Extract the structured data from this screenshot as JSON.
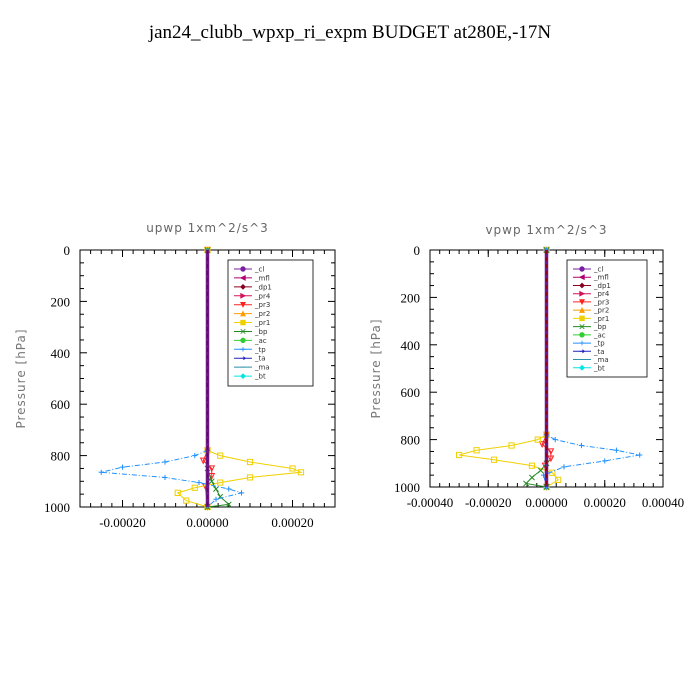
{
  "title": "jan24_clubb_wpxp_ri_expm  BUDGET at280E,-17N",
  "legend_entries": [
    "_cl",
    "_mfl",
    "_dp1",
    "_pr4",
    "_pr3",
    "_pr2",
    "_pr1",
    "_bp",
    "_ac",
    "_tp",
    "_ta",
    "_ma",
    "_bt"
  ],
  "colors": {
    "_cl": "#7a1fa2",
    "_mfl": "#b0006e",
    "_dp1": "#8b0020",
    "_pr4": "#d4145a",
    "_pr3": "#ff2020",
    "_pr2": "#ff9c00",
    "_pr1": "#f0d000",
    "_bp": "#228b22",
    "_ac": "#32cd32",
    "_tp": "#1e90ff",
    "_ta": "#2020c0",
    "_ma": "#2f8fa8",
    "_bt": "#00e5e5"
  },
  "chart_data": [
    {
      "type": "line",
      "title": "upwp   1xm^2/s^3",
      "ylabel": "Pressure [hPa]",
      "xlim": [
        -0.0003,
        0.0003
      ],
      "ylim": [
        1000,
        0
      ],
      "yticks": [
        0,
        200,
        400,
        600,
        800,
        1000
      ],
      "ytick_labels": [
        "0",
        "200",
        "400",
        "600",
        "800",
        "1000"
      ],
      "xticks": [
        -0.0002,
        0.0,
        0.0002
      ],
      "xtick_labels": [
        "-0.00020",
        "0.00000",
        "0.00020"
      ],
      "grid": false,
      "legend_position": "top-right",
      "series": [
        {
          "name": "_cl",
          "x": [
            0,
            0,
            0,
            0
          ],
          "y": [
            0,
            400,
            800,
            1000
          ]
        },
        {
          "name": "_mfl",
          "x": [
            0,
            0,
            0,
            0
          ],
          "y": [
            0,
            400,
            800,
            1000
          ]
        },
        {
          "name": "_dp1",
          "x": [
            0,
            0,
            0,
            0
          ],
          "y": [
            0,
            400,
            800,
            1000
          ]
        },
        {
          "name": "_pr4",
          "x": [
            0,
            0,
            0,
            0
          ],
          "y": [
            0,
            400,
            800,
            1000
          ]
        },
        {
          "name": "_pr3",
          "x": [
            0,
            0,
            -1e-05,
            1e-05,
            1e-05,
            -5e-06,
            0
          ],
          "y": [
            0,
            780,
            820,
            850,
            880,
            920,
            1000
          ]
        },
        {
          "name": "_pr2",
          "x": [
            0,
            0,
            0,
            0
          ],
          "y": [
            0,
            400,
            800,
            1000
          ]
        },
        {
          "name": "_pr1",
          "x": [
            0,
            0,
            3e-05,
            0.0001,
            0.0002,
            0.00022,
            0.0001,
            3e-05,
            -3e-05,
            -7e-05,
            -5e-05,
            0
          ],
          "y": [
            0,
            780,
            800,
            825,
            850,
            865,
            885,
            905,
            925,
            945,
            975,
            1000
          ]
        },
        {
          "name": "_bp",
          "x": [
            0,
            0,
            1e-05,
            2e-05,
            3e-05,
            5e-05,
            0
          ],
          "y": [
            0,
            850,
            900,
            930,
            960,
            990,
            1000
          ]
        },
        {
          "name": "_ac",
          "x": [
            0,
            0,
            0,
            0
          ],
          "y": [
            0,
            400,
            800,
            1000
          ]
        },
        {
          "name": "_tp",
          "x": [
            0,
            0,
            -3e-05,
            -0.0001,
            -0.0002,
            -0.00025,
            -0.0001,
            -2e-05,
            5e-05,
            8e-05,
            2e-05,
            0
          ],
          "y": [
            0,
            780,
            800,
            825,
            845,
            865,
            885,
            905,
            930,
            945,
            970,
            1000
          ]
        },
        {
          "name": "_ta",
          "x": [
            0,
            0,
            0,
            0
          ],
          "y": [
            0,
            400,
            800,
            1000
          ]
        },
        {
          "name": "_ma",
          "x": [
            0,
            0,
            0,
            0
          ],
          "y": [
            0,
            400,
            800,
            1000
          ]
        },
        {
          "name": "_bt",
          "x": [
            0,
            0,
            0,
            0
          ],
          "y": [
            0,
            400,
            800,
            1000
          ]
        }
      ]
    },
    {
      "type": "line",
      "title": "vpwp   1xm^2/s^3",
      "ylabel": "Pressure [hPa]",
      "xlim": [
        -0.0004,
        0.0004
      ],
      "ylim": [
        1000,
        0
      ],
      "yticks": [
        0,
        200,
        400,
        600,
        800,
        1000
      ],
      "ytick_labels": [
        "0",
        "200",
        "400",
        "600",
        "800",
        "1000"
      ],
      "xticks": [
        -0.0004,
        -0.0002,
        0.0,
        0.0002,
        0.0004
      ],
      "xtick_labels": [
        "-0.00040",
        "-0.00020",
        "0.00000",
        "0.00020",
        "0.00040"
      ],
      "grid": false,
      "legend_position": "top-right",
      "series": [
        {
          "name": "_cl",
          "x": [
            0,
            0,
            0,
            0
          ],
          "y": [
            0,
            400,
            800,
            1000
          ]
        },
        {
          "name": "_mfl",
          "x": [
            0,
            0,
            0,
            0
          ],
          "y": [
            0,
            400,
            800,
            1000
          ]
        },
        {
          "name": "_dp1",
          "x": [
            0,
            0,
            0,
            0
          ],
          "y": [
            0,
            400,
            800,
            1000
          ]
        },
        {
          "name": "_pr4",
          "x": [
            0,
            0,
            0,
            0
          ],
          "y": [
            0,
            400,
            800,
            1000
          ]
        },
        {
          "name": "_pr3",
          "x": [
            0,
            0,
            -1.5e-05,
            1.5e-05,
            1.5e-05,
            -5e-06,
            0
          ],
          "y": [
            0,
            780,
            820,
            850,
            880,
            910,
            1000
          ]
        },
        {
          "name": "_pr2",
          "x": [
            0,
            0,
            0,
            0
          ],
          "y": [
            0,
            400,
            800,
            1000
          ]
        },
        {
          "name": "_pr1",
          "x": [
            0,
            0,
            -3e-05,
            -0.00012,
            -0.00024,
            -0.0003,
            -0.00018,
            -5e-05,
            2e-05,
            4e-05,
            0
          ],
          "y": [
            0,
            780,
            800,
            825,
            845,
            865,
            885,
            910,
            940,
            970,
            1000
          ]
        },
        {
          "name": "_bp",
          "x": [
            0,
            0,
            -2e-05,
            -5e-05,
            -7e-05,
            0
          ],
          "y": [
            0,
            900,
            930,
            960,
            985,
            1000
          ]
        },
        {
          "name": "_ac",
          "x": [
            0,
            0,
            0,
            0
          ],
          "y": [
            0,
            400,
            800,
            1000
          ]
        },
        {
          "name": "_tp",
          "x": [
            0,
            0,
            3e-05,
            0.00012,
            0.00024,
            0.00032,
            0.0002,
            6e-05,
            -1e-05,
            0
          ],
          "y": [
            0,
            780,
            800,
            825,
            845,
            865,
            890,
            915,
            950,
            1000
          ]
        },
        {
          "name": "_ta",
          "x": [
            0,
            0,
            0,
            0
          ],
          "y": [
            0,
            400,
            800,
            1000
          ]
        },
        {
          "name": "_ma",
          "x": [
            0,
            0,
            0,
            0
          ],
          "y": [
            0,
            400,
            800,
            1000
          ]
        },
        {
          "name": "_bt",
          "x": [
            0,
            0,
            0,
            0
          ],
          "y": [
            0,
            400,
            800,
            1000
          ]
        }
      ]
    }
  ]
}
